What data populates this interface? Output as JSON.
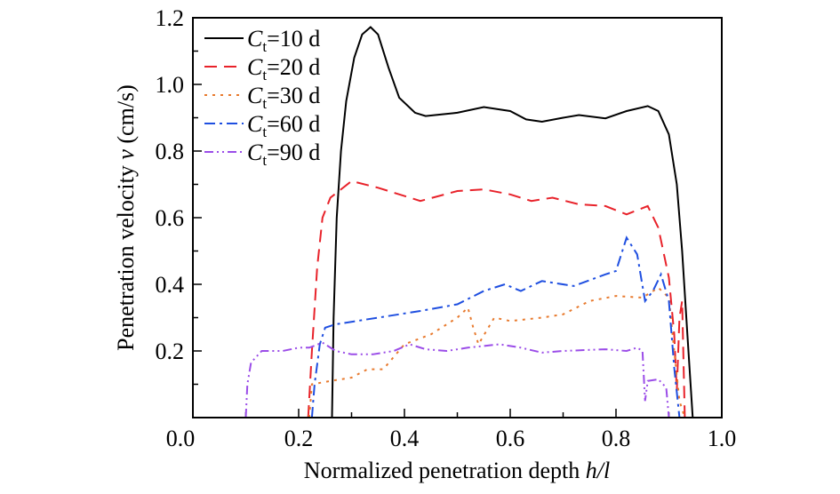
{
  "chart_data": {
    "type": "line",
    "title": "",
    "xlabel": "Normalized penetration depth ",
    "xlabel_italic": "h/l",
    "ylabel": "Penetration velocity ",
    "ylabel_italic": "v",
    "ylabel_unit": " (cm/s)",
    "xlim": [
      0,
      1.0
    ],
    "ylim": [
      0,
      1.2
    ],
    "xticks": [
      "0.0",
      "0.2",
      "0.4",
      "0.6",
      "0.8",
      "1.0"
    ],
    "yticks": [
      "0.2",
      "0.4",
      "0.6",
      "0.8",
      "1.0",
      "1.2"
    ],
    "grid": false,
    "legend_placement": "top-left",
    "series": [
      {
        "name": "=10 d",
        "symbol": "C",
        "sub": "t",
        "color": "#000000",
        "dash": "",
        "points": [
          [
            0.263,
            0
          ],
          [
            0.266,
            0.3
          ],
          [
            0.272,
            0.6
          ],
          [
            0.28,
            0.8
          ],
          [
            0.29,
            0.95
          ],
          [
            0.305,
            1.08
          ],
          [
            0.32,
            1.15
          ],
          [
            0.336,
            1.172
          ],
          [
            0.35,
            1.15
          ],
          [
            0.37,
            1.05
          ],
          [
            0.39,
            0.96
          ],
          [
            0.42,
            0.915
          ],
          [
            0.44,
            0.905
          ],
          [
            0.5,
            0.915
          ],
          [
            0.55,
            0.932
          ],
          [
            0.6,
            0.92
          ],
          [
            0.63,
            0.895
          ],
          [
            0.66,
            0.888
          ],
          [
            0.7,
            0.9
          ],
          [
            0.73,
            0.908
          ],
          [
            0.78,
            0.898
          ],
          [
            0.82,
            0.92
          ],
          [
            0.86,
            0.935
          ],
          [
            0.88,
            0.92
          ],
          [
            0.9,
            0.85
          ],
          [
            0.915,
            0.7
          ],
          [
            0.925,
            0.5
          ],
          [
            0.935,
            0.25
          ],
          [
            0.945,
            0
          ]
        ]
      },
      {
        "name": "=20 d",
        "symbol": "C",
        "sub": "t",
        "color": "#e8222a",
        "dash": "14,8",
        "points": [
          [
            0.218,
            0
          ],
          [
            0.225,
            0.2
          ],
          [
            0.235,
            0.45
          ],
          [
            0.245,
            0.6
          ],
          [
            0.26,
            0.66
          ],
          [
            0.3,
            0.71
          ],
          [
            0.35,
            0.69
          ],
          [
            0.43,
            0.65
          ],
          [
            0.5,
            0.68
          ],
          [
            0.55,
            0.685
          ],
          [
            0.6,
            0.67
          ],
          [
            0.64,
            0.65
          ],
          [
            0.68,
            0.66
          ],
          [
            0.73,
            0.64
          ],
          [
            0.78,
            0.635
          ],
          [
            0.82,
            0.61
          ],
          [
            0.86,
            0.635
          ],
          [
            0.88,
            0.57
          ],
          [
            0.9,
            0.42
          ],
          [
            0.91,
            0.25
          ],
          [
            0.915,
            0.08
          ],
          [
            0.92,
            0.3
          ],
          [
            0.925,
            0.35
          ],
          [
            0.93,
            0
          ]
        ]
      },
      {
        "name": "=30 d",
        "symbol": "C",
        "sub": "t",
        "color": "#e87a2e",
        "dash": "3,6",
        "points": [
          [
            0.22,
            0
          ],
          [
            0.225,
            0.1
          ],
          [
            0.26,
            0.11
          ],
          [
            0.3,
            0.12
          ],
          [
            0.33,
            0.145
          ],
          [
            0.36,
            0.145
          ],
          [
            0.4,
            0.22
          ],
          [
            0.45,
            0.25
          ],
          [
            0.5,
            0.3
          ],
          [
            0.52,
            0.33
          ],
          [
            0.53,
            0.27
          ],
          [
            0.54,
            0.22
          ],
          [
            0.57,
            0.3
          ],
          [
            0.6,
            0.29
          ],
          [
            0.66,
            0.3
          ],
          [
            0.7,
            0.31
          ],
          [
            0.75,
            0.35
          ],
          [
            0.8,
            0.365
          ],
          [
            0.85,
            0.36
          ],
          [
            0.88,
            0.39
          ],
          [
            0.9,
            0.36
          ],
          [
            0.91,
            0.2
          ],
          [
            0.92,
            0.05
          ],
          [
            0.93,
            0
          ]
        ]
      },
      {
        "name": "=60 d",
        "symbol": "C",
        "sub": "t",
        "color": "#1f4fe0",
        "dash": "12,5,3,5",
        "points": [
          [
            0.225,
            0
          ],
          [
            0.23,
            0.1
          ],
          [
            0.24,
            0.22
          ],
          [
            0.25,
            0.27
          ],
          [
            0.27,
            0.28
          ],
          [
            0.35,
            0.3
          ],
          [
            0.43,
            0.32
          ],
          [
            0.5,
            0.34
          ],
          [
            0.55,
            0.38
          ],
          [
            0.59,
            0.4
          ],
          [
            0.62,
            0.38
          ],
          [
            0.66,
            0.41
          ],
          [
            0.72,
            0.395
          ],
          [
            0.78,
            0.43
          ],
          [
            0.8,
            0.44
          ],
          [
            0.82,
            0.54
          ],
          [
            0.84,
            0.49
          ],
          [
            0.855,
            0.35
          ],
          [
            0.87,
            0.38
          ],
          [
            0.885,
            0.43
          ],
          [
            0.9,
            0.35
          ],
          [
            0.91,
            0.15
          ],
          [
            0.92,
            0
          ]
        ]
      },
      {
        "name": "=90 d",
        "symbol": "C",
        "sub": "t",
        "color": "#9b4de8",
        "dash": "10,4,2,4,2,4",
        "points": [
          [
            0.1,
            0
          ],
          [
            0.103,
            0.1
          ],
          [
            0.11,
            0.165
          ],
          [
            0.13,
            0.2
          ],
          [
            0.17,
            0.2
          ],
          [
            0.2,
            0.21
          ],
          [
            0.22,
            0.21
          ],
          [
            0.245,
            0.225
          ],
          [
            0.27,
            0.2
          ],
          [
            0.3,
            0.19
          ],
          [
            0.34,
            0.19
          ],
          [
            0.38,
            0.2
          ],
          [
            0.41,
            0.22
          ],
          [
            0.44,
            0.205
          ],
          [
            0.48,
            0.2
          ],
          [
            0.52,
            0.21
          ],
          [
            0.58,
            0.22
          ],
          [
            0.62,
            0.21
          ],
          [
            0.66,
            0.195
          ],
          [
            0.7,
            0.2
          ],
          [
            0.78,
            0.205
          ],
          [
            0.82,
            0.2
          ],
          [
            0.84,
            0.21
          ],
          [
            0.85,
            0.2
          ],
          [
            0.855,
            0.05
          ],
          [
            0.86,
            0.11
          ],
          [
            0.88,
            0.115
          ],
          [
            0.895,
            0.09
          ],
          [
            0.9,
            0
          ]
        ]
      }
    ]
  }
}
